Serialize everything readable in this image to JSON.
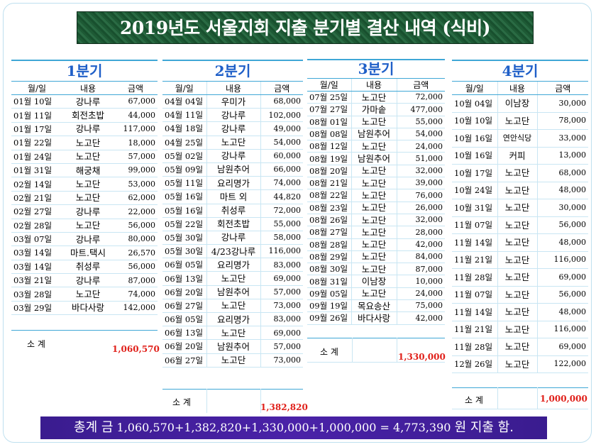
{
  "title": "2019년도 서울지회 지출 분기별 결산 내역 (식비)",
  "headers": {
    "date": "월/일",
    "item": "내용",
    "amount": "금액"
  },
  "subtotal_label": "소 계",
  "q1": {
    "name": "1분기",
    "subtotal": "1,060,570",
    "rows": [
      [
        "01월 10일",
        "강나루",
        "67,000"
      ],
      [
        "01월 11일",
        "회전초밥",
        "44,000"
      ],
      [
        "01월 17일",
        "강나루",
        "117,000"
      ],
      [
        "01월 22일",
        "노고단",
        "18,000"
      ],
      [
        "01월 24일",
        "노고단",
        "57,000"
      ],
      [
        "01월 31일",
        "해궁채",
        "99,000"
      ],
      [
        "02월 14일",
        "노고단",
        "53,000"
      ],
      [
        "02월 21일",
        "노고단",
        "62,000"
      ],
      [
        "02월 27일",
        "강나루",
        "22,000"
      ],
      [
        "02월 28일",
        "노고단",
        "56,000"
      ],
      [
        "03월 07일",
        "강나루",
        "80,000"
      ],
      [
        "03월 14일",
        "마트.택시",
        "26,570"
      ],
      [
        "03월 14일",
        "취성루",
        "56,000"
      ],
      [
        "03월 21일",
        "강나루",
        "87,000"
      ],
      [
        "03월 28일",
        "노고단",
        "74,000"
      ],
      [
        "03월 29일",
        "바다사랑",
        "142,000"
      ]
    ]
  },
  "q2": {
    "name": "2분기",
    "subtotal": "1,382,820",
    "rows": [
      [
        "04월 04일",
        "우미가",
        "68,000"
      ],
      [
        "04월 11일",
        "강나루",
        "102,000"
      ],
      [
        "04월 18일",
        "강나루",
        "49,000"
      ],
      [
        "04월 25일",
        "노고단",
        "54,000"
      ],
      [
        "05월 02일",
        "강나루",
        "60,000"
      ],
      [
        "05월 09일",
        "남원추어",
        "66,000"
      ],
      [
        "05월 11일",
        "요리명가",
        "74,000"
      ],
      [
        "05월 16일",
        "마트 외",
        "44,820"
      ],
      [
        "05월 16일",
        "취성루",
        "72,000"
      ],
      [
        "05월 22일",
        "회전초밥",
        "55,000"
      ],
      [
        "05월 30일",
        "강나루",
        "58,000"
      ],
      [
        "05월 30일",
        "4/23강나루",
        "116,000"
      ],
      [
        "06월 05일",
        "요리명가",
        "83,000"
      ],
      [
        "06월 13일",
        "노고단",
        "69,000"
      ],
      [
        "06월 20일",
        "남원추어",
        "57,000"
      ],
      [
        "06월 27일",
        "노고단",
        "73,000"
      ],
      [
        "06월 05일",
        "요리명가",
        "83,000"
      ],
      [
        "06월 13일",
        "노고단",
        "69,000"
      ],
      [
        "06월 20일",
        "남원추어",
        "57,000"
      ],
      [
        "06월 27일",
        "노고단",
        "73,000"
      ]
    ]
  },
  "q3": {
    "name": "3분기",
    "subtotal": "1,330,000",
    "rows": [
      [
        "07월 25일",
        "노고단",
        "72,000"
      ],
      [
        "07월 27일",
        "가마솥",
        "477,000"
      ],
      [
        "08월 01일",
        "노고단",
        "55,000"
      ],
      [
        "08월 08일",
        "남원추어",
        "54,000"
      ],
      [
        "08월 12일",
        "노고단",
        "24,000"
      ],
      [
        "08월 19일",
        "남원추어",
        "51,000"
      ],
      [
        "08월 20일",
        "노고단",
        "32,000"
      ],
      [
        "08월 21일",
        "노고단",
        "39,000"
      ],
      [
        "08월 22일",
        "노고단",
        "76,000"
      ],
      [
        "08월 23일",
        "노고단",
        "26,000"
      ],
      [
        "08월 26일",
        "노고단",
        "32,000"
      ],
      [
        "08월 27일",
        "노고단",
        "28,000"
      ],
      [
        "08월 28일",
        "노고단",
        "42,000"
      ],
      [
        "08월 29일",
        "노고단",
        "84,000"
      ],
      [
        "08월 30일",
        "노고단",
        "87,000"
      ],
      [
        "08월 31일",
        "이남장",
        "10,000"
      ],
      [
        "09월 05일",
        "노고단",
        "24,000"
      ],
      [
        "09월 19일",
        "목요송산",
        "75,000"
      ],
      [
        "09월 26일",
        "바다사랑",
        "42,000"
      ]
    ]
  },
  "q4": {
    "name": "4분기",
    "subtotal": "1,000,000",
    "rows": [
      [
        "10월 04일",
        "이남장",
        "30,000"
      ],
      [
        "10월 10일",
        "노고단",
        "78,000"
      ],
      [
        "10월 16일",
        "연안식당",
        "33,000"
      ],
      [
        "10월 16일",
        "커피",
        "13,000"
      ],
      [
        "10월 17일",
        "노고단",
        "68,000"
      ],
      [
        "10월 24일",
        "노고단",
        "48,000"
      ],
      [
        "10월 31일",
        "노고단",
        "30,000"
      ],
      [
        "11월 07일",
        "노고단",
        "56,000"
      ],
      [
        "11월 14일",
        "노고단",
        "48,000"
      ],
      [
        "11월 21일",
        "노고단",
        "116,000"
      ],
      [
        "11월 28일",
        "노고단",
        "69,000"
      ],
      [
        "11월 07일",
        "노고단",
        "56,000"
      ],
      [
        "11월 14일",
        "노고단",
        "48,000"
      ],
      [
        "11월 21일",
        "노고단",
        "116,000"
      ],
      [
        "11월 28일",
        "노고단",
        "69,000"
      ],
      [
        "12월 26일",
        "노고단",
        "122,000"
      ]
    ]
  },
  "footer": {
    "label": "총계 금",
    "formula": "1,060,570+1,382,820+1,330,000+1,000,000 = 4,773,390",
    "suffix": "원 지출 함."
  }
}
